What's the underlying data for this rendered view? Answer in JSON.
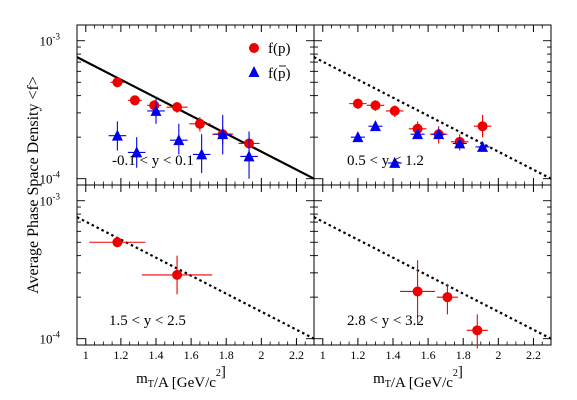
{
  "chart_data": {
    "type": "scatter",
    "ylabel": "Average Phase Space Density <f>",
    "xlabel": "m_T/A [GeV/c^2]",
    "xlim": [
      0.95,
      2.3
    ],
    "ylim": [
      9e-05,
      0.0013
    ],
    "y_scale": "log",
    "x_tick_values": [
      1,
      1.2,
      1.4,
      1.6,
      1.8,
      2,
      2.2
    ],
    "x_tick_labels": [
      "1",
      "1.2",
      "1.4",
      "1.6",
      "1.8",
      "2",
      "2.2"
    ],
    "y_tick_labels": [
      {
        "value": 0.001,
        "base": "10",
        "exp": "-3"
      },
      {
        "value": 0.0001,
        "base": "10",
        "exp": "-4"
      }
    ],
    "legend": {
      "placement": "top-right",
      "entries": [
        {
          "series": "f(p)",
          "label": "f(p)",
          "marker": "circle",
          "color": "#ee0000"
        },
        {
          "series": "f(pbar)",
          "label": "f(p)",
          "overbar": true,
          "marker": "triangle",
          "color": "#0000ee"
        }
      ]
    },
    "reference_line": {
      "x1": 0.95,
      "y1": 0.00076,
      "x2": 2.3,
      "y2": 0.0001
    },
    "panels": [
      {
        "rapidity_label": "-0.1 < y < 0.1",
        "line_style": "solid",
        "series": [
          {
            "name": "f(p)",
            "color": "#ee0000",
            "marker": "circle",
            "points": [
              {
                "x": 1.18,
                "y": 0.0005,
                "xerr": 0.04,
                "ylo": 0.00046,
                "yhi": 0.00054
              },
              {
                "x": 1.28,
                "y": 0.00037,
                "xerr": 0.04,
                "ylo": 0.00034,
                "yhi": 0.0004
              },
              {
                "x": 1.39,
                "y": 0.00034,
                "xerr": 0.04,
                "ylo": 0.00031,
                "yhi": 0.00037
              },
              {
                "x": 1.52,
                "y": 0.00033,
                "xerr": 0.06,
                "ylo": 0.0003,
                "yhi": 0.00036
              },
              {
                "x": 1.65,
                "y": 0.00025,
                "xerr": 0.06,
                "ylo": 0.00022,
                "yhi": 0.00028
              },
              {
                "x": 1.78,
                "y": 0.00021,
                "xerr": 0.06,
                "ylo": 0.00018,
                "yhi": 0.00024
              },
              {
                "x": 1.93,
                "y": 0.00018,
                "xerr": 0.06,
                "ylo": 0.00015,
                "yhi": 0.00021
              }
            ]
          },
          {
            "name": "f(pbar)",
            "color": "#0000ee",
            "marker": "triangle",
            "points": [
              {
                "x": 1.18,
                "y": 0.000205,
                "xerr": 0.05,
                "ylo": 0.00016,
                "yhi": 0.00026
              },
              {
                "x": 1.29,
                "y": 0.000155,
                "xerr": 0.05,
                "ylo": 0.00012,
                "yhi": 0.0002
              },
              {
                "x": 1.4,
                "y": 0.00031,
                "xerr": 0.05,
                "ylo": 0.00025,
                "yhi": 0.00038
              },
              {
                "x": 1.53,
                "y": 0.00019,
                "xerr": 0.05,
                "ylo": 0.00015,
                "yhi": 0.00025
              },
              {
                "x": 1.66,
                "y": 0.00015,
                "xerr": 0.05,
                "ylo": 0.00011,
                "yhi": 0.00021
              },
              {
                "x": 1.78,
                "y": 0.00021,
                "xerr": 0.05,
                "ylo": 0.00015,
                "yhi": 0.00029
              },
              {
                "x": 1.93,
                "y": 0.000145,
                "xerr": 0.05,
                "ylo": 0.0001,
                "yhi": 0.00022
              }
            ]
          }
        ]
      },
      {
        "rapidity_label": "0.5 < y < 1.2",
        "line_style": "dotted",
        "series": [
          {
            "name": "f(p)",
            "color": "#ee0000",
            "marker": "circle",
            "points": [
              {
                "x": 1.2,
                "y": 0.00035,
                "xerr": 0.05,
                "ylo": 0.00032,
                "yhi": 0.00038
              },
              {
                "x": 1.3,
                "y": 0.00034,
                "xerr": 0.05,
                "ylo": 0.00031,
                "yhi": 0.00037
              },
              {
                "x": 1.41,
                "y": 0.00031,
                "xerr": 0.05,
                "ylo": 0.00028,
                "yhi": 0.00034
              },
              {
                "x": 1.54,
                "y": 0.00023,
                "xerr": 0.05,
                "ylo": 0.0002,
                "yhi": 0.00026
              },
              {
                "x": 1.66,
                "y": 0.00021,
                "xerr": 0.05,
                "ylo": 0.00018,
                "yhi": 0.00024
              },
              {
                "x": 1.78,
                "y": 0.000185,
                "xerr": 0.05,
                "ylo": 0.00016,
                "yhi": 0.00021
              },
              {
                "x": 1.91,
                "y": 0.00024,
                "xerr": 0.05,
                "ylo": 0.0002,
                "yhi": 0.00029
              }
            ]
          },
          {
            "name": "f(pbar)",
            "color": "#0000ee",
            "marker": "triangle",
            "points": [
              {
                "x": 1.2,
                "y": 0.0002,
                "xerr": 0.04,
                "ylo": 0.00019,
                "yhi": 0.00021
              },
              {
                "x": 1.3,
                "y": 0.00024,
                "xerr": 0.04,
                "ylo": 0.00023,
                "yhi": 0.00025
              },
              {
                "x": 1.41,
                "y": 0.00013,
                "xerr": 0.04,
                "ylo": 0.00012,
                "yhi": 0.00014
              },
              {
                "x": 1.54,
                "y": 0.00021,
                "xerr": 0.04,
                "ylo": 0.0002,
                "yhi": 0.00022
              },
              {
                "x": 1.66,
                "y": 0.00021,
                "xerr": 0.04,
                "ylo": 0.0002,
                "yhi": 0.00022
              },
              {
                "x": 1.78,
                "y": 0.00018,
                "xerr": 0.04,
                "ylo": 0.00017,
                "yhi": 0.00019
              },
              {
                "x": 1.91,
                "y": 0.00017,
                "xerr": 0.04,
                "ylo": 0.00016,
                "yhi": 0.00018
              }
            ]
          }
        ]
      },
      {
        "rapidity_label": "1.5 < y < 2.5",
        "line_style": "dotted",
        "series": [
          {
            "name": "f(p)",
            "color": "#ee0000",
            "marker": "circle",
            "points": [
              {
                "x": 1.18,
                "y": 0.0005,
                "xerr": 0.16,
                "ylo": 0.00046,
                "yhi": 0.00054
              },
              {
                "x": 1.52,
                "y": 0.00029,
                "xerr": 0.2,
                "ylo": 0.00021,
                "yhi": 0.0004
              }
            ]
          }
        ]
      },
      {
        "rapidity_label": "2.8 < y < 3.2",
        "line_style": "dotted",
        "series": [
          {
            "name": "f(p)",
            "color": "#ee0000",
            "marker": "circle",
            "points": [
              {
                "x": 1.54,
                "y": 0.00022,
                "xerr": 0.1,
                "ylo": 0.00013,
                "yhi": 0.00037
              },
              {
                "x": 1.71,
                "y": 0.0002,
                "xerr": 0.06,
                "ylo": 0.00015,
                "yhi": 0.00025
              },
              {
                "x": 1.88,
                "y": 0.000115,
                "xerr": 0.06,
                "ylo": 8.5e-05,
                "yhi": 0.00015
              }
            ]
          }
        ]
      }
    ]
  }
}
